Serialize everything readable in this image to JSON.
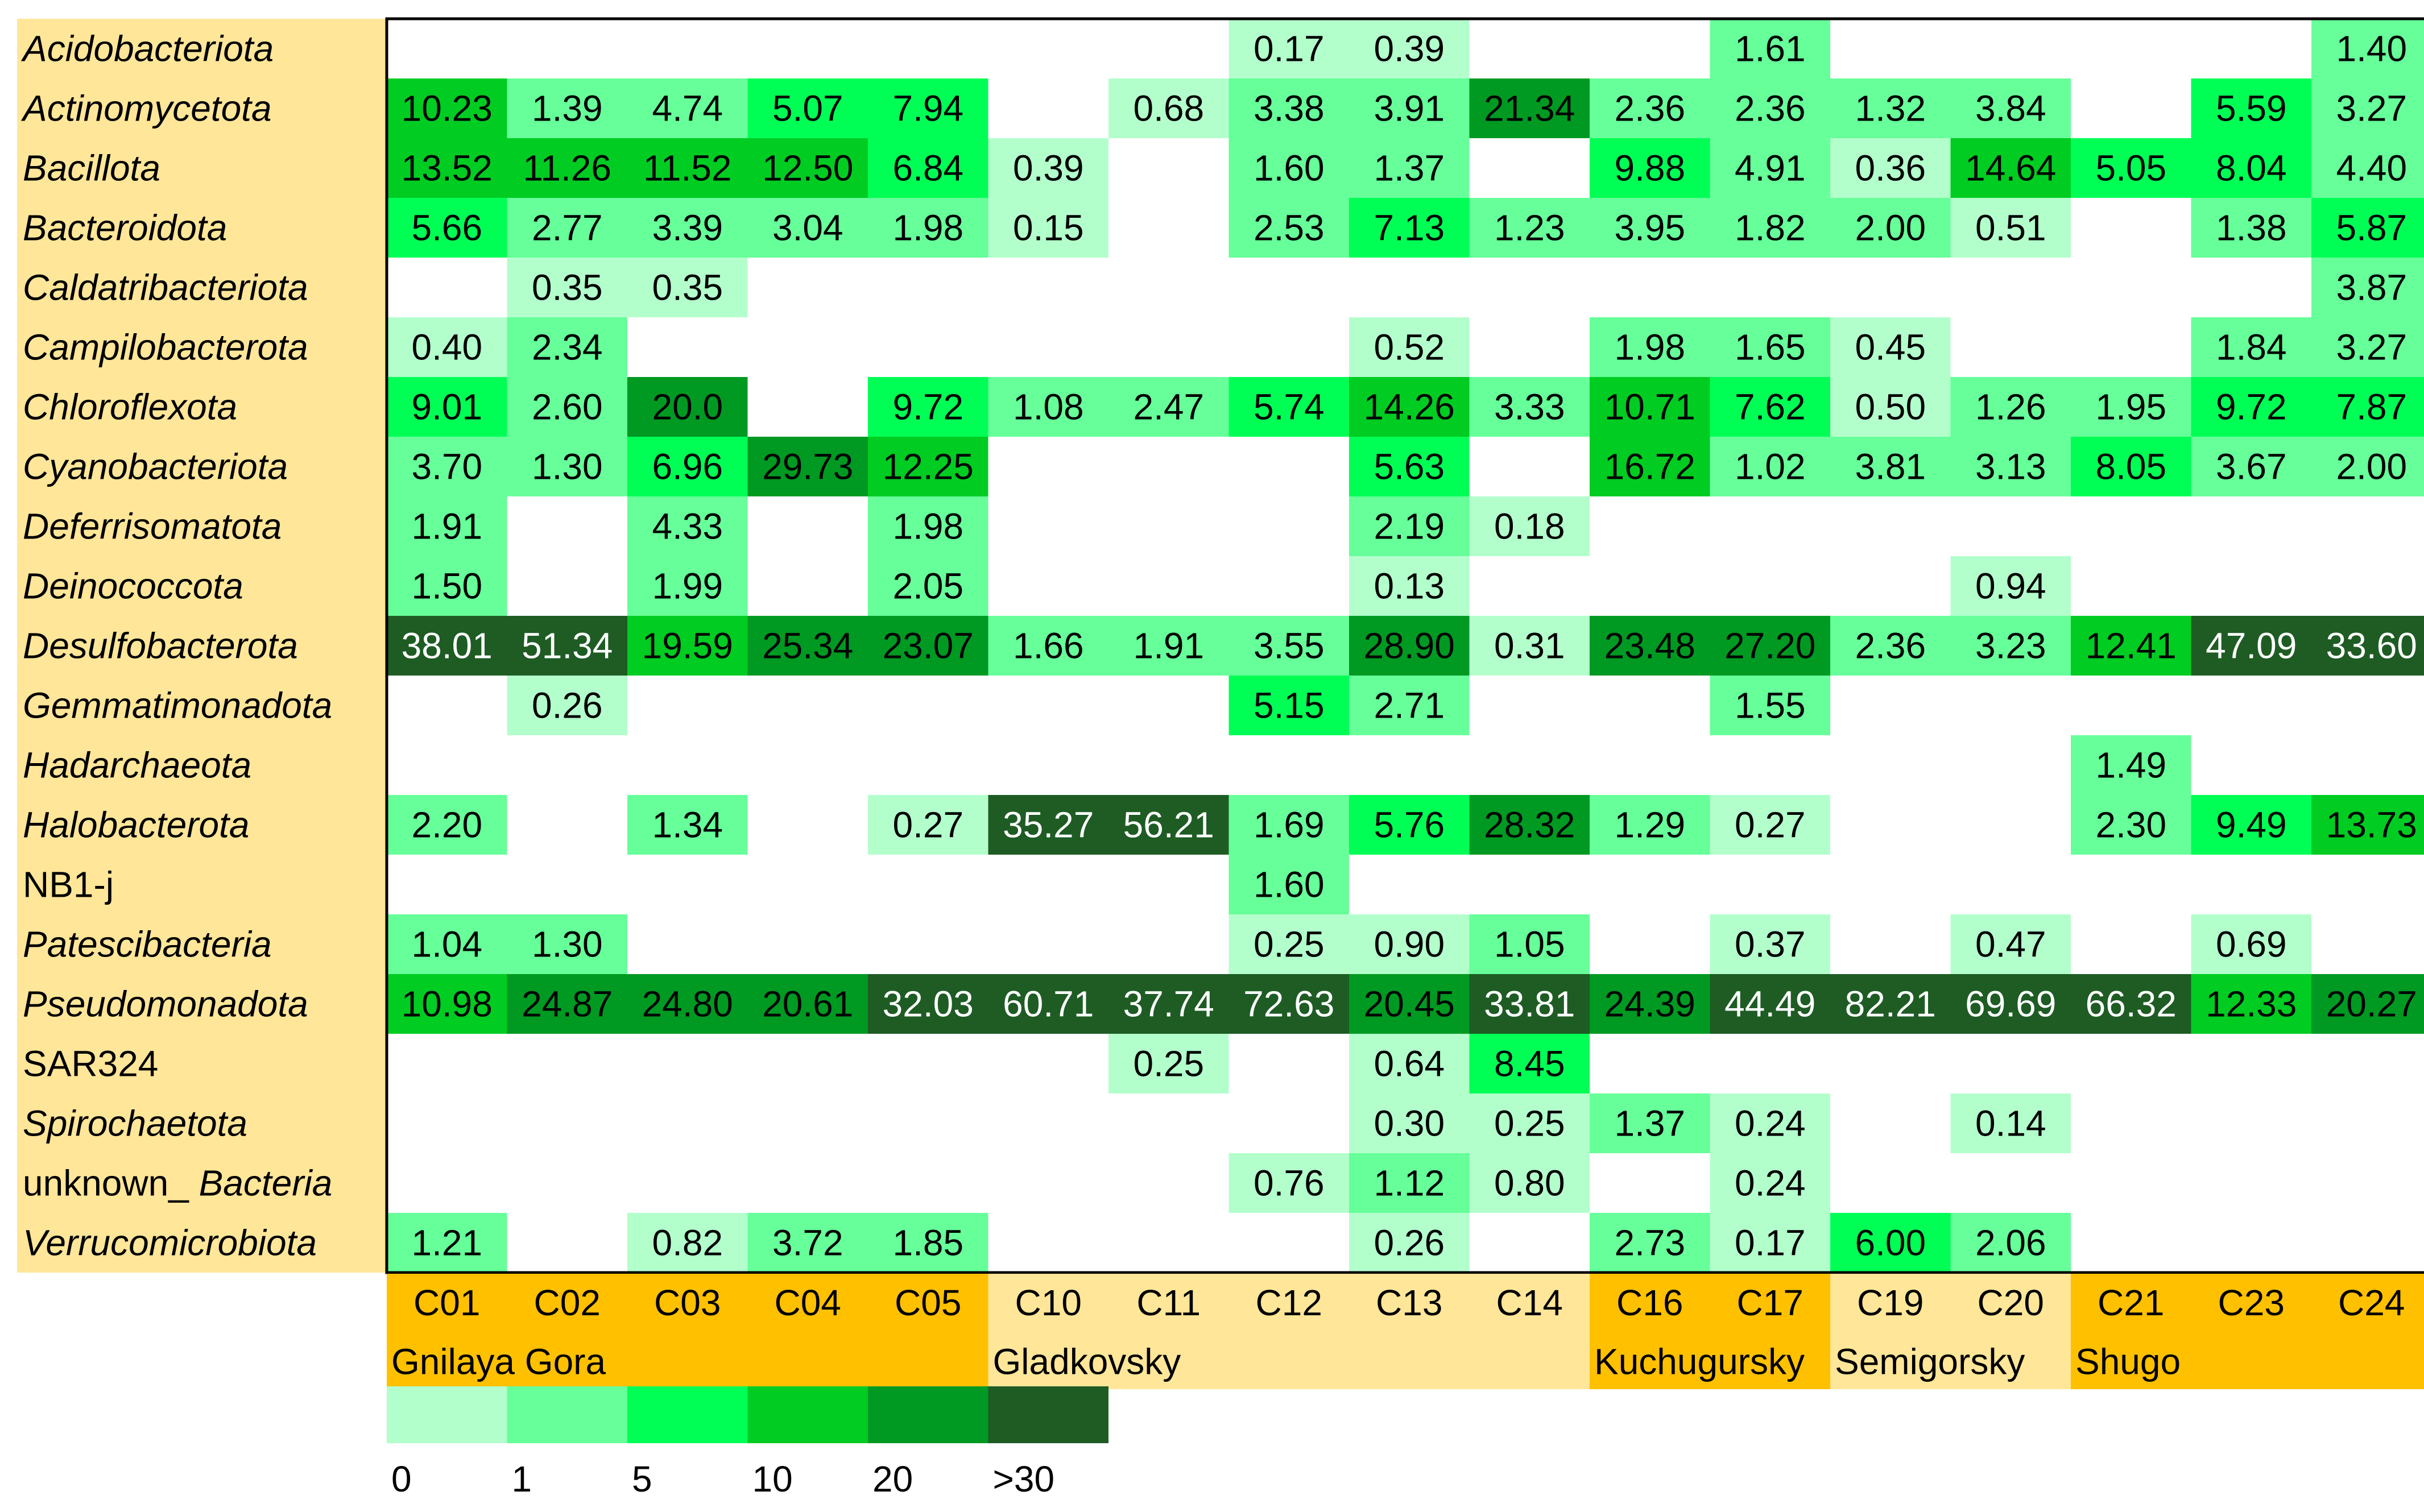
{
  "chart_data": {
    "type": "heatmap",
    "rows": [
      {
        "label": "Acidobacteriota",
        "italic": true
      },
      {
        "label": "Actinomycetota",
        "italic": true
      },
      {
        "label": "Bacillota",
        "italic": true
      },
      {
        "label": "Bacteroidota",
        "italic": true
      },
      {
        "label": "Caldatribacteriota",
        "italic": true
      },
      {
        "label": "Campilobacterota",
        "italic": true
      },
      {
        "label": "Chloroflexota",
        "italic": true
      },
      {
        "label": "Cyanobacteriota",
        "italic": true
      },
      {
        "label": "Deferrisomatota",
        "italic": true
      },
      {
        "label": "Deinococcota",
        "italic": true
      },
      {
        "label": "Desulfobacterota",
        "italic": true
      },
      {
        "label": "Gemmatimonadota",
        "italic": true
      },
      {
        "label": "Hadarchaeota",
        "italic": true
      },
      {
        "label": "Halobacterota",
        "italic": true
      },
      {
        "label": "NB1-j",
        "italic": false
      },
      {
        "label": "Patescibacteria",
        "italic": true
      },
      {
        "label": "Pseudomonadota",
        "italic": true
      },
      {
        "label": "SAR324",
        "italic": false
      },
      {
        "label": "Spirochaetota",
        "italic": true
      },
      {
        "label": "unknown_ Bacteria",
        "italic": false,
        "italic_part": "Bacteria"
      },
      {
        "label": "Verrucomicrobiota",
        "italic": true
      }
    ],
    "columns": [
      "C01",
      "C02",
      "C03",
      "C04",
      "C05",
      "C10",
      "C11",
      "C12",
      "C13",
      "C14",
      "C16",
      "C17",
      "C19",
      "C20",
      "C21",
      "C23",
      "C24"
    ],
    "values": [
      [
        null,
        null,
        null,
        null,
        null,
        null,
        null,
        "0.17",
        "0.39",
        null,
        null,
        "1.61",
        null,
        null,
        null,
        null,
        "1.40"
      ],
      [
        "10.23",
        "1.39",
        "4.74",
        "5.07",
        "7.94",
        null,
        "0.68",
        "3.38",
        "3.91",
        "21.34",
        "2.36",
        "2.36",
        "1.32",
        "3.84",
        null,
        "5.59",
        "3.27"
      ],
      [
        "13.52",
        "11.26",
        "11.52",
        "12.50",
        "6.84",
        "0.39",
        null,
        "1.60",
        "1.37",
        null,
        "9.88",
        "4.91",
        "0.36",
        "14.64",
        "5.05",
        "8.04",
        "4.40"
      ],
      [
        "5.66",
        "2.77",
        "3.39",
        "3.04",
        "1.98",
        "0.15",
        null,
        "2.53",
        "7.13",
        "1.23",
        "3.95",
        "1.82",
        "2.00",
        "0.51",
        null,
        "1.38",
        "5.87"
      ],
      [
        null,
        "0.35",
        "0.35",
        null,
        null,
        null,
        null,
        null,
        null,
        null,
        null,
        null,
        null,
        null,
        null,
        null,
        "3.87"
      ],
      [
        "0.40",
        "2.34",
        null,
        null,
        null,
        null,
        null,
        null,
        "0.52",
        null,
        "1.98",
        "1.65",
        "0.45",
        null,
        null,
        "1.84",
        "3.27"
      ],
      [
        "9.01",
        "2.60",
        "20.0",
        null,
        "9.72",
        "1.08",
        "2.47",
        "5.74",
        "14.26",
        "3.33",
        "10.71",
        "7.62",
        "0.50",
        "1.26",
        "1.95",
        "9.72",
        "7.87"
      ],
      [
        "3.70",
        "1.30",
        "6.96",
        "29.73",
        "12.25",
        null,
        null,
        null,
        "5.63",
        null,
        "16.72",
        "1.02",
        "3.81",
        "3.13",
        "8.05",
        "3.67",
        "2.00"
      ],
      [
        "1.91",
        null,
        "4.33",
        null,
        "1.98",
        null,
        null,
        null,
        "2.19",
        "0.18",
        null,
        null,
        null,
        null,
        null,
        null,
        null
      ],
      [
        "1.50",
        null,
        "1.99",
        null,
        "2.05",
        null,
        null,
        null,
        "0.13",
        null,
        null,
        null,
        null,
        "0.94",
        null,
        null,
        null
      ],
      [
        "38.01",
        "51.34",
        "19.59",
        "25.34",
        "23.07",
        "1.66",
        "1.91",
        "3.55",
        "28.90",
        "0.31",
        "23.48",
        "27.20",
        "2.36",
        "3.23",
        "12.41",
        "47.09",
        "33.60"
      ],
      [
        null,
        "0.26",
        null,
        null,
        null,
        null,
        null,
        "5.15",
        "2.71",
        null,
        null,
        "1.55",
        null,
        null,
        null,
        null,
        null
      ],
      [
        null,
        null,
        null,
        null,
        null,
        null,
        null,
        null,
        null,
        null,
        null,
        null,
        null,
        null,
        "1.49",
        null,
        null
      ],
      [
        "2.20",
        null,
        "1.34",
        null,
        "0.27",
        "35.27",
        "56.21",
        "1.69",
        "5.76",
        "28.32",
        "1.29",
        "0.27",
        null,
        null,
        "2.30",
        "9.49",
        "13.73"
      ],
      [
        null,
        null,
        null,
        null,
        null,
        null,
        null,
        "1.60",
        null,
        null,
        null,
        null,
        null,
        null,
        null,
        null,
        null
      ],
      [
        "1.04",
        "1.30",
        null,
        null,
        null,
        null,
        null,
        "0.25",
        "0.90",
        "1.05",
        null,
        "0.37",
        null,
        "0.47",
        null,
        "0.69",
        null
      ],
      [
        "10.98",
        "24.87",
        "24.80",
        "20.61",
        "32.03",
        "60.71",
        "37.74",
        "72.63",
        "20.45",
        "33.81",
        "24.39",
        "44.49",
        "82.21",
        "69.69",
        "66.32",
        "12.33",
        "20.27"
      ],
      [
        null,
        null,
        null,
        null,
        null,
        null,
        "0.25",
        null,
        "0.64",
        "8.45",
        null,
        null,
        null,
        null,
        null,
        null,
        null
      ],
      [
        null,
        null,
        null,
        null,
        null,
        null,
        null,
        null,
        "0.30",
        "0.25",
        "1.37",
        "0.24",
        null,
        "0.14",
        null,
        null,
        null
      ],
      [
        null,
        null,
        null,
        null,
        null,
        null,
        null,
        "0.76",
        "1.12",
        "0.80",
        null,
        "0.24",
        null,
        null,
        null,
        null,
        null
      ],
      [
        "1.21",
        null,
        "0.82",
        "3.72",
        "1.85",
        null,
        null,
        null,
        "0.26",
        null,
        "2.73",
        "0.17",
        "6.00",
        "2.06",
        null,
        null,
        null
      ]
    ],
    "groups": [
      {
        "name": "Gnilaya Gora",
        "columns": [
          "C01",
          "C02",
          "C03",
          "C04",
          "C05"
        ],
        "color": "#FFC000"
      },
      {
        "name": "Gladkovsky",
        "columns": [
          "C10",
          "C11",
          "C12",
          "C13",
          "C14"
        ],
        "color": "#FFE699"
      },
      {
        "name": "Kuchugursky",
        "columns": [
          "C16",
          "C17"
        ],
        "color": "#FFC000"
      },
      {
        "name": "Semigorsky",
        "columns": [
          "C19",
          "C20"
        ],
        "color": "#FFE699"
      },
      {
        "name": "Shugo",
        "columns": [
          "C21",
          "C23",
          "C24"
        ],
        "color": "#FFC000"
      }
    ],
    "scale": {
      "labels": [
        "0",
        "1",
        "5",
        "10",
        "20",
        ">30"
      ],
      "thresholds": [
        0,
        1,
        5,
        10,
        20,
        30
      ],
      "colors": [
        "#B3FFCC",
        "#66FF99",
        "#00FF55",
        "#00CC22",
        "#009922",
        "#1E5C24"
      ],
      "text_colors": [
        "#000000",
        "#000000",
        "#000000",
        "#000000",
        "#000000",
        "#FFFFFF"
      ]
    },
    "row_label_background": "#FFE699",
    "grid": false
  }
}
